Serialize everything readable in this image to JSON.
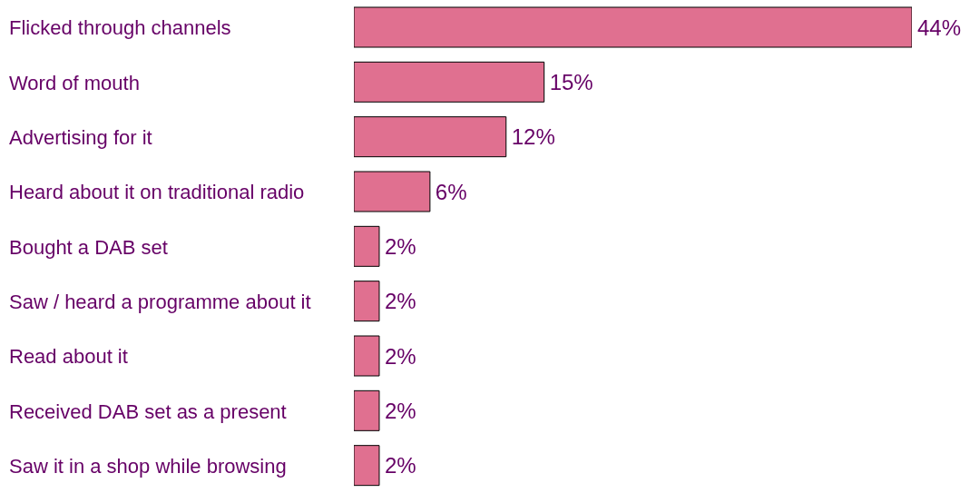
{
  "chart_data": {
    "type": "bar",
    "orientation": "horizontal",
    "categories": [
      "Flicked through channels",
      "Word of mouth",
      "Advertising for it",
      "Heard about it on traditional radio",
      "Bought a DAB set",
      "Saw / heard a programme about it",
      "Read about it",
      "Received DAB set as a present",
      "Saw it in a shop while browsing"
    ],
    "values": [
      44,
      15,
      12,
      6,
      2,
      2,
      2,
      2,
      2
    ],
    "value_labels": [
      "44%",
      "15%",
      "12%",
      "6%",
      "2%",
      "2%",
      "2%",
      "2%",
      "2%"
    ],
    "color": "#e07090"
  }
}
